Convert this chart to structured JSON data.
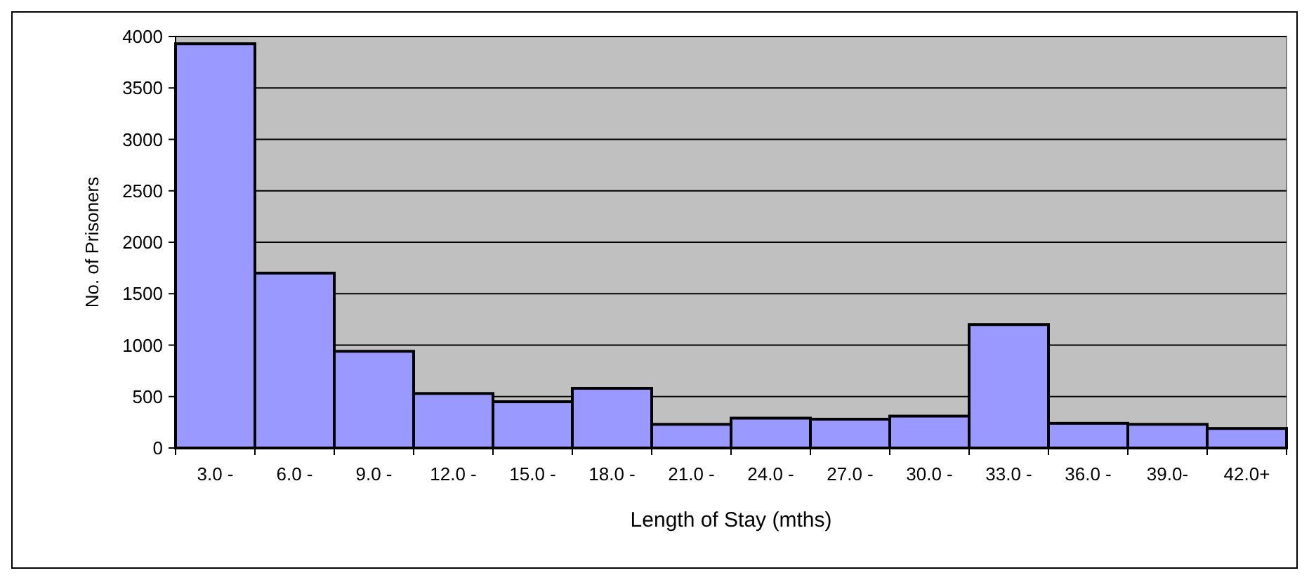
{
  "chart_data": {
    "type": "bar",
    "xlabel": "Length of Stay (mths)",
    "ylabel": "No. of Prisoners",
    "categories": [
      "3.0 -",
      "6.0 -",
      "9.0 -",
      "12.0 -",
      "15.0 -",
      "18.0 -",
      "21.0 -",
      "24.0 -",
      "27.0 -",
      "30.0 -",
      "33.0 -",
      "36.0 -",
      "39.0-",
      "42.0+"
    ],
    "values": [
      3930,
      1700,
      940,
      530,
      450,
      580,
      230,
      290,
      280,
      310,
      1200,
      240,
      230,
      190
    ],
    "color": "#9999ff",
    "ylim": [
      0,
      4000
    ],
    "yticks": [
      0,
      500,
      1000,
      1500,
      2000,
      2500,
      3000,
      3500,
      4000
    ],
    "grid": "y"
  }
}
